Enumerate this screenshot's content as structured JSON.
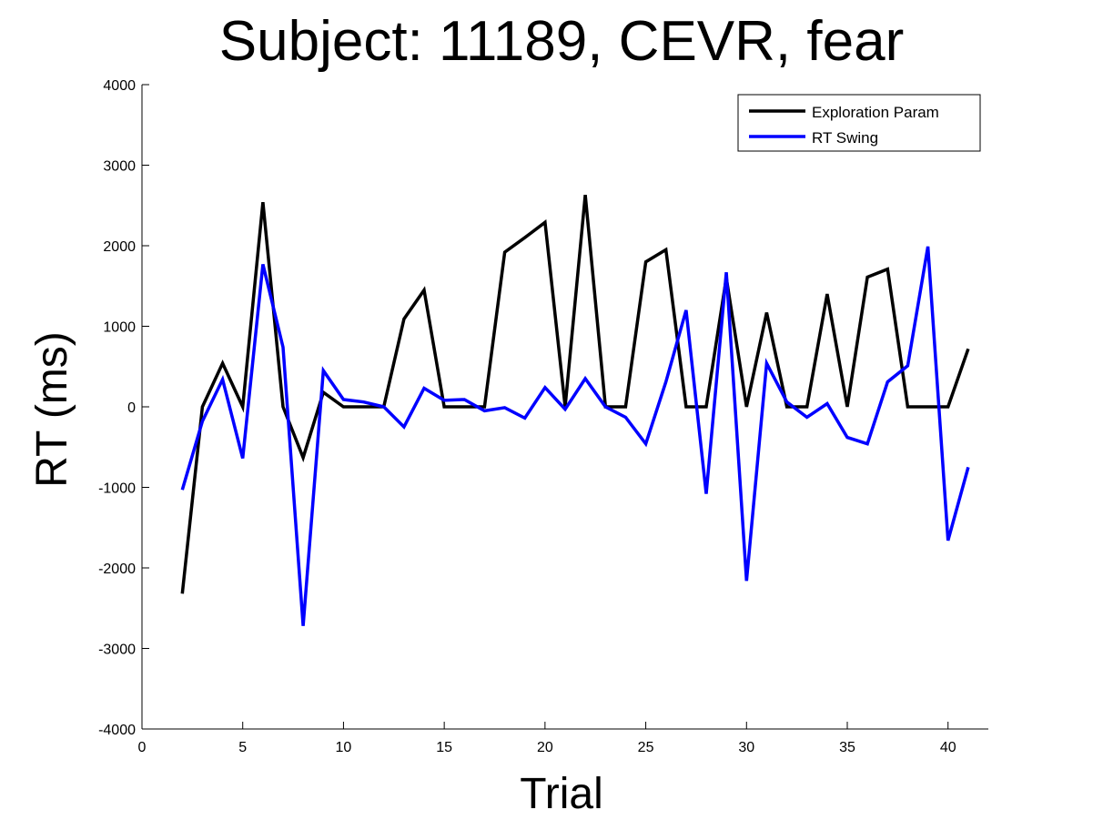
{
  "chart_data": {
    "type": "line",
    "title": "Subject: 11189, CEVR, fear",
    "xlabel": "Trial",
    "ylabel": "RT (ms)",
    "xlim": [
      0,
      42
    ],
    "ylim": [
      -4000,
      4000
    ],
    "xticks": [
      0,
      5,
      10,
      15,
      20,
      25,
      30,
      35,
      40
    ],
    "yticks": [
      -4000,
      -3000,
      -2000,
      -1000,
      0,
      1000,
      2000,
      3000,
      4000
    ],
    "grid": false,
    "legend_position": "top-right",
    "x": [
      2,
      3,
      4,
      5,
      6,
      7,
      8,
      9,
      10,
      11,
      12,
      13,
      14,
      15,
      16,
      17,
      18,
      19,
      20,
      21,
      22,
      23,
      24,
      25,
      26,
      27,
      28,
      29,
      30,
      31,
      32,
      33,
      34,
      35,
      36,
      37,
      38,
      39,
      40,
      41
    ],
    "series": [
      {
        "name": "Exploration Param",
        "color": "#000000",
        "values": [
          -2320,
          0,
          540,
          0,
          2540,
          0,
          -630,
          180,
          0,
          0,
          0,
          1090,
          1450,
          0,
          0,
          0,
          1920,
          2100,
          2290,
          0,
          2630,
          0,
          0,
          1800,
          1950,
          0,
          0,
          1600,
          0,
          1170,
          0,
          0,
          1400,
          0,
          1610,
          1710,
          0,
          0,
          0,
          720
        ]
      },
      {
        "name": "RT Swing",
        "color": "#0000ff",
        "values": [
          -1030,
          -180,
          340,
          -640,
          1770,
          740,
          -2720,
          450,
          90,
          60,
          0,
          -250,
          230,
          80,
          90,
          -50,
          -10,
          -140,
          240,
          -30,
          350,
          0,
          -130,
          -460,
          310,
          1200,
          -1080,
          1670,
          -2160,
          540,
          60,
          -130,
          40,
          -380,
          -460,
          310,
          510,
          1990,
          -1660,
          -750
        ]
      }
    ]
  }
}
